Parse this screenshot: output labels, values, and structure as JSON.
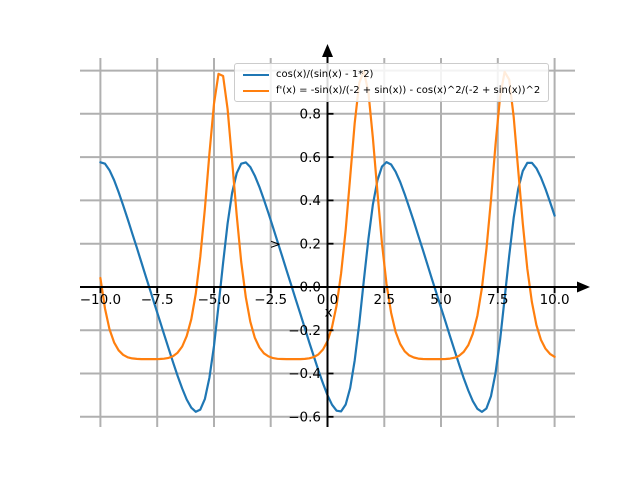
{
  "figure": {
    "background": "#ffffff",
    "title": ""
  },
  "chart_data": {
    "type": "line",
    "title": "",
    "xlabel": "x",
    "ylabel": "",
    "x_range": [
      -10,
      10
    ],
    "x_step": 0.2,
    "xlim": [
      -10.9,
      10.9
    ],
    "ylim": [
      -0.647,
      1.058
    ],
    "xticks": [
      -10.0,
      -7.5,
      -5.0,
      -2.5,
      0.0,
      2.5,
      5.0,
      7.5,
      10.0
    ],
    "xtick_labels": [
      "−10.0",
      "−7.5",
      "−5.0",
      "−2.5",
      "0.0",
      "2.5",
      "5.0",
      "7.5",
      "10.0"
    ],
    "yticks": [
      -0.6,
      -0.4,
      -0.2,
      0.0,
      0.2,
      0.4,
      0.6,
      0.8
    ],
    "ytick_labels": [
      "−0.6",
      "−0.4",
      "−0.2",
      "0.0",
      "0.2",
      "0.4",
      "0.6",
      "0.8"
    ],
    "ygrid_extra": [
      1.0
    ],
    "grid": true,
    "grid_color": "#b0b0b0",
    "axis_color": "#000000",
    "legend_position": "upper right",
    "series": [
      {
        "name": "cos(x)/(sin(x) - 1*2)",
        "color": "#1f77b4",
        "formula": "cos(x)/(sin(x)-2)",
        "y_max": 0.577,
        "y_min": -0.577
      },
      {
        "name": "f'(x) = -sin(x)/(-2 + sin(x)) - cos(x)^2/(-2 + sin(x))^2",
        "color": "#ff7f0e",
        "formula": "-sin(x)/(-2+sin(x))-pow(cos(x),2)/pow(-2+sin(x),2)",
        "y_max": 1.0,
        "y_min": -0.333
      }
    ],
    "annotations": [
      {
        "text": ">",
        "x": -2.3,
        "y": 0.2
      },
      {
        "text": "x",
        "x": 0.05,
        "y": -0.115
      }
    ]
  }
}
